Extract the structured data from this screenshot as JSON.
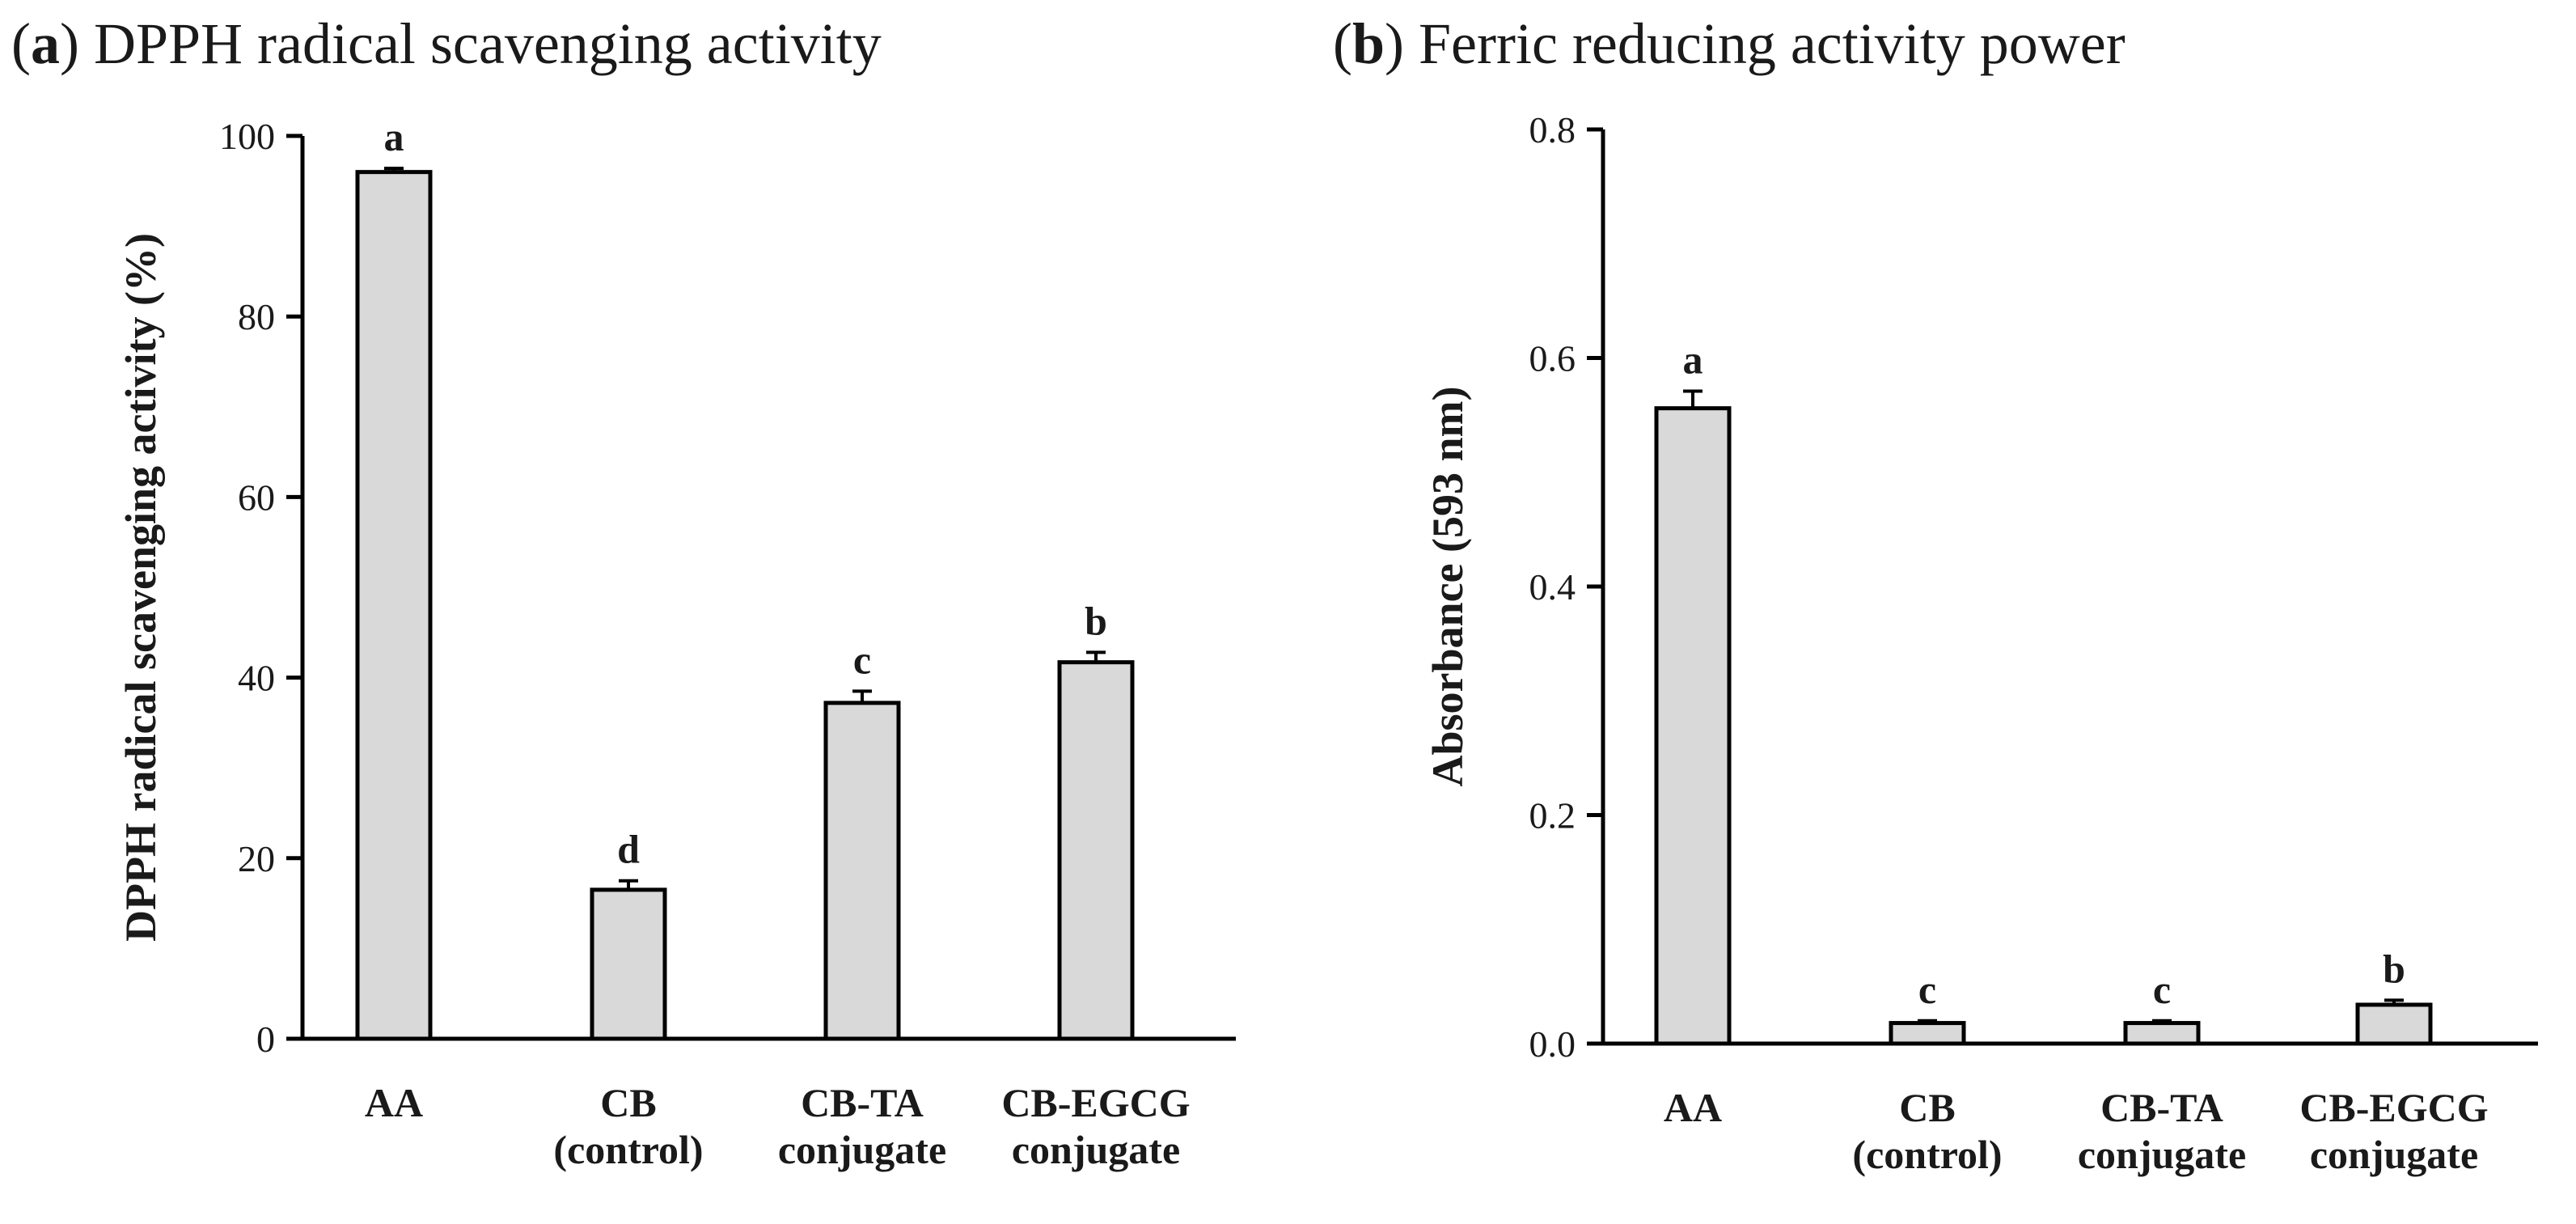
{
  "chart_data": [
    {
      "type": "bar",
      "panel": "a",
      "title": "DPPH radical scavenging activity",
      "xlabel": "",
      "ylabel": "DPPH radical scavenging activity (%)",
      "ylim": [
        0,
        100
      ],
      "yticks": [
        "0",
        "20",
        "40",
        "60",
        "80",
        "100"
      ],
      "ytick_values": [
        0,
        20,
        40,
        60,
        80,
        100
      ],
      "categories": [
        [
          "AA"
        ],
        [
          "CB",
          "(control)"
        ],
        [
          "CB-TA",
          "conjugate"
        ],
        [
          "CB-EGCG",
          "conjugate"
        ]
      ],
      "values": [
        96.0,
        16.5,
        37.2,
        41.7
      ],
      "errors": [
        0.4,
        1.0,
        1.3,
        1.1
      ],
      "significance": [
        "a",
        "d",
        "c",
        "b"
      ]
    },
    {
      "type": "bar",
      "panel": "b",
      "title": "Ferric reducing activity power",
      "xlabel": "",
      "ylabel": "Absorbance (593 nm)",
      "ylim": [
        0,
        0.8
      ],
      "yticks": [
        "0.0",
        "0.2",
        "0.4",
        "0.6",
        "0.8"
      ],
      "ytick_values": [
        0,
        0.2,
        0.4,
        0.6,
        0.8
      ],
      "categories": [
        [
          "AA"
        ],
        [
          "CB",
          "(control)"
        ],
        [
          "CB-TA",
          "conjugate"
        ],
        [
          "CB-EGCG",
          "conjugate"
        ]
      ],
      "values": [
        0.556,
        0.018,
        0.018,
        0.034
      ],
      "errors": [
        0.015,
        0.002,
        0.002,
        0.004
      ],
      "significance": [
        "a",
        "c",
        "c",
        "b"
      ]
    }
  ]
}
